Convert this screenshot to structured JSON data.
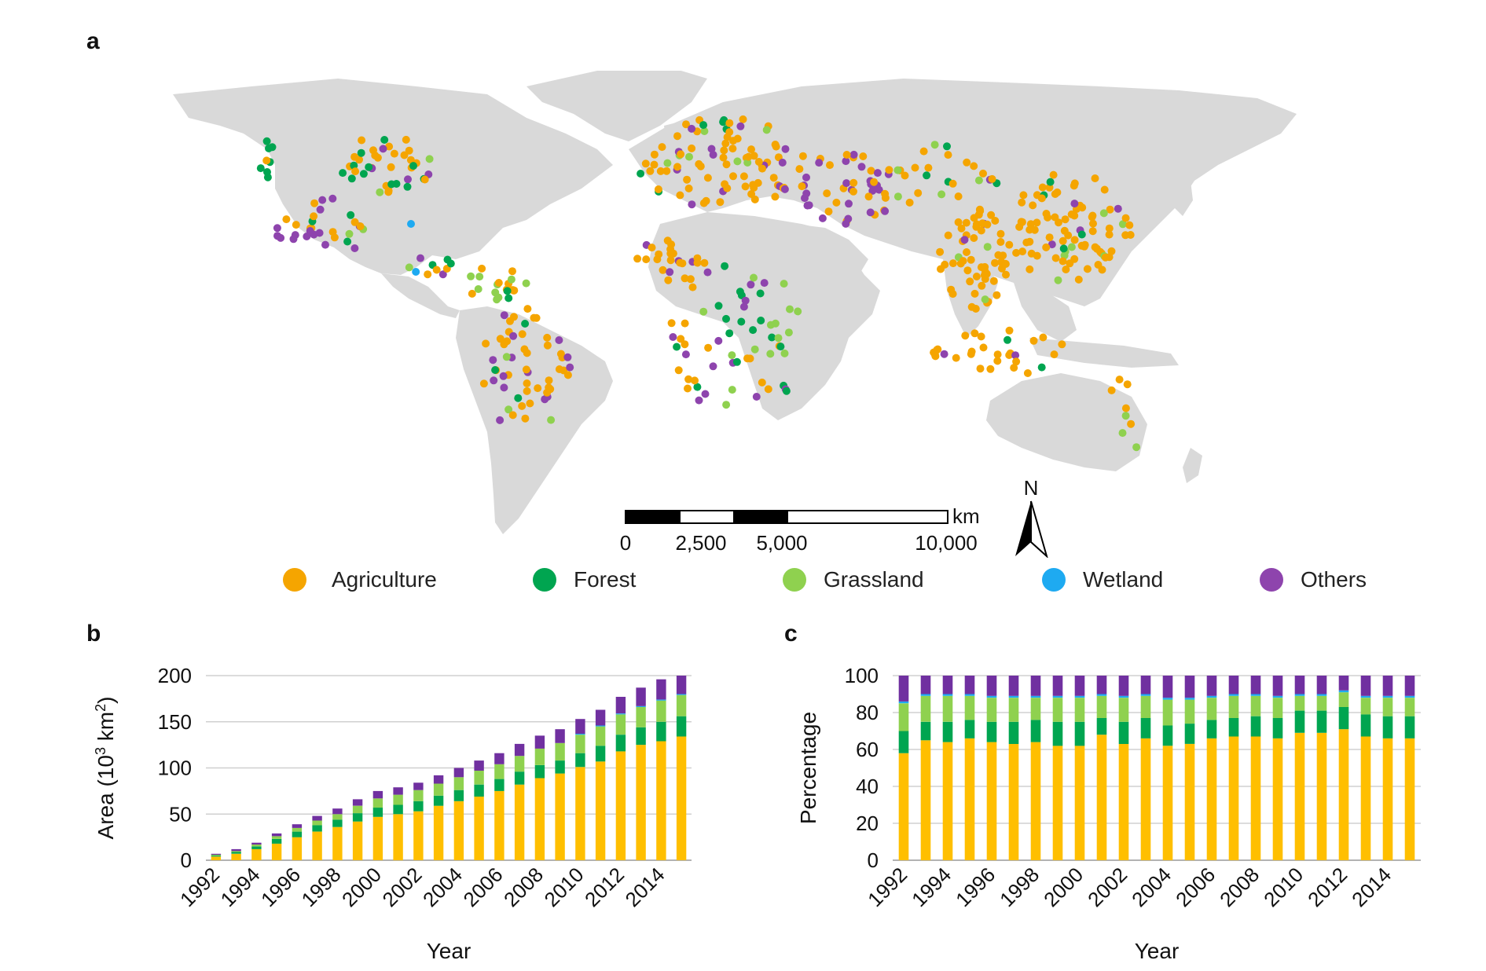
{
  "panels": {
    "a": "a",
    "b": "b",
    "c": "c"
  },
  "map": {
    "scale_unit": "km",
    "scale_ticks": [
      "0",
      "2,500",
      "5,000",
      "10,000"
    ],
    "north_label": "N",
    "legend": [
      {
        "label": "Agriculture",
        "color": "#f5a500"
      },
      {
        "label": "Forest",
        "color": "#00a550"
      },
      {
        "label": "Grassland",
        "color": "#8fd14f"
      },
      {
        "label": "Wetland",
        "color": "#1eaaf1"
      },
      {
        "label": "Others",
        "color": "#8e44ad"
      }
    ]
  },
  "chart_data": [
    {
      "type": "bar",
      "stacked": true,
      "xlabel": "Year",
      "ylabel": "Area (10³ km²)",
      "ylim": [
        0,
        200
      ],
      "yticks": [
        0,
        50,
        100,
        150,
        200
      ],
      "grid": true,
      "categories": [
        "1992",
        "1993",
        "1994",
        "1995",
        "1996",
        "1997",
        "1998",
        "1999",
        "2000",
        "2001",
        "2002",
        "2003",
        "2004",
        "2005",
        "2006",
        "2007",
        "2008",
        "2009",
        "2010",
        "2011",
        "2012",
        "2013",
        "2014",
        "2015"
      ],
      "xtick_labels": [
        "1992",
        "1994",
        "1996",
        "1998",
        "2000",
        "2002",
        "2004",
        "2006",
        "2008",
        "2010",
        "2012",
        "2014"
      ],
      "series": [
        {
          "name": "Agriculture",
          "color": "#ffbf00",
          "values": [
            4,
            7,
            12,
            18,
            25,
            31,
            36,
            42,
            47,
            50,
            53,
            59,
            64,
            69,
            75,
            82,
            89,
            94,
            101,
            107,
            118,
            125,
            129,
            134
          ]
        },
        {
          "name": "Forest",
          "color": "#00a550",
          "values": [
            1,
            2,
            3,
            5,
            6,
            7,
            8,
            9,
            10,
            10,
            11,
            11,
            12,
            13,
            13,
            14,
            14,
            14,
            15,
            17,
            18,
            19,
            21,
            22
          ]
        },
        {
          "name": "Grassland",
          "color": "#8fd14f",
          "values": [
            1,
            1,
            2,
            3,
            4,
            5,
            6,
            8,
            10,
            11,
            12,
            13,
            14,
            15,
            16,
            17,
            18,
            19,
            20,
            21,
            22,
            22,
            23,
            23
          ]
        },
        {
          "name": "Wetland",
          "color": "#1eaaf1",
          "values": [
            0,
            0,
            0,
            0,
            0,
            0,
            0,
            0,
            0,
            0,
            0,
            0,
            0,
            0,
            0,
            0,
            0,
            0,
            1,
            1,
            1,
            1,
            1,
            1
          ]
        },
        {
          "name": "Others",
          "color": "#7030a0",
          "values": [
            1,
            2,
            2,
            3,
            4,
            5,
            6,
            7,
            8,
            8,
            8,
            9,
            10,
            11,
            12,
            13,
            14,
            15,
            16,
            17,
            18,
            20,
            22,
            20
          ]
        }
      ]
    },
    {
      "type": "bar",
      "stacked": true,
      "xlabel": "Year",
      "ylabel": "Percentage",
      "ylim": [
        0,
        100
      ],
      "yticks": [
        0,
        20,
        40,
        60,
        80,
        100
      ],
      "grid": true,
      "categories": [
        "1992",
        "1993",
        "1994",
        "1995",
        "1996",
        "1997",
        "1998",
        "1999",
        "2000",
        "2001",
        "2002",
        "2003",
        "2004",
        "2005",
        "2006",
        "2007",
        "2008",
        "2009",
        "2010",
        "2011",
        "2012",
        "2013",
        "2014",
        "2015"
      ],
      "xtick_labels": [
        "1992",
        "1994",
        "1996",
        "1998",
        "2000",
        "2002",
        "2004",
        "2006",
        "2008",
        "2010",
        "2012",
        "2014"
      ],
      "series": [
        {
          "name": "Agriculture",
          "color": "#ffbf00",
          "values": [
            58,
            65,
            64,
            66,
            64,
            63,
            64,
            62,
            62,
            68,
            63,
            66,
            62,
            63,
            66,
            67,
            67,
            66,
            69,
            69,
            71,
            67,
            66,
            66
          ]
        },
        {
          "name": "Forest",
          "color": "#00a550",
          "values": [
            12,
            10,
            11,
            10,
            11,
            12,
            12,
            13,
            13,
            9,
            12,
            11,
            11,
            11,
            10,
            10,
            11,
            11,
            12,
            12,
            12,
            12,
            12,
            12
          ]
        },
        {
          "name": "Grassland",
          "color": "#8fd14f",
          "values": [
            15,
            14,
            14,
            13,
            13,
            13,
            12,
            13,
            13,
            12,
            13,
            12,
            14,
            13,
            12,
            12,
            11,
            11,
            8,
            8,
            8,
            9,
            10,
            10
          ]
        },
        {
          "name": "Wetland",
          "color": "#1eaaf1",
          "values": [
            1,
            1,
            1,
            1,
            1,
            1,
            1,
            1,
            1,
            1,
            1,
            1,
            1,
            1,
            1,
            1,
            1,
            1,
            1,
            1,
            1,
            1,
            1,
            1
          ]
        },
        {
          "name": "Others",
          "color": "#7030a0",
          "values": [
            14,
            10,
            10,
            10,
            11,
            11,
            11,
            11,
            11,
            10,
            11,
            10,
            12,
            12,
            11,
            10,
            10,
            11,
            10,
            10,
            8,
            11,
            11,
            11
          ]
        }
      ]
    }
  ]
}
